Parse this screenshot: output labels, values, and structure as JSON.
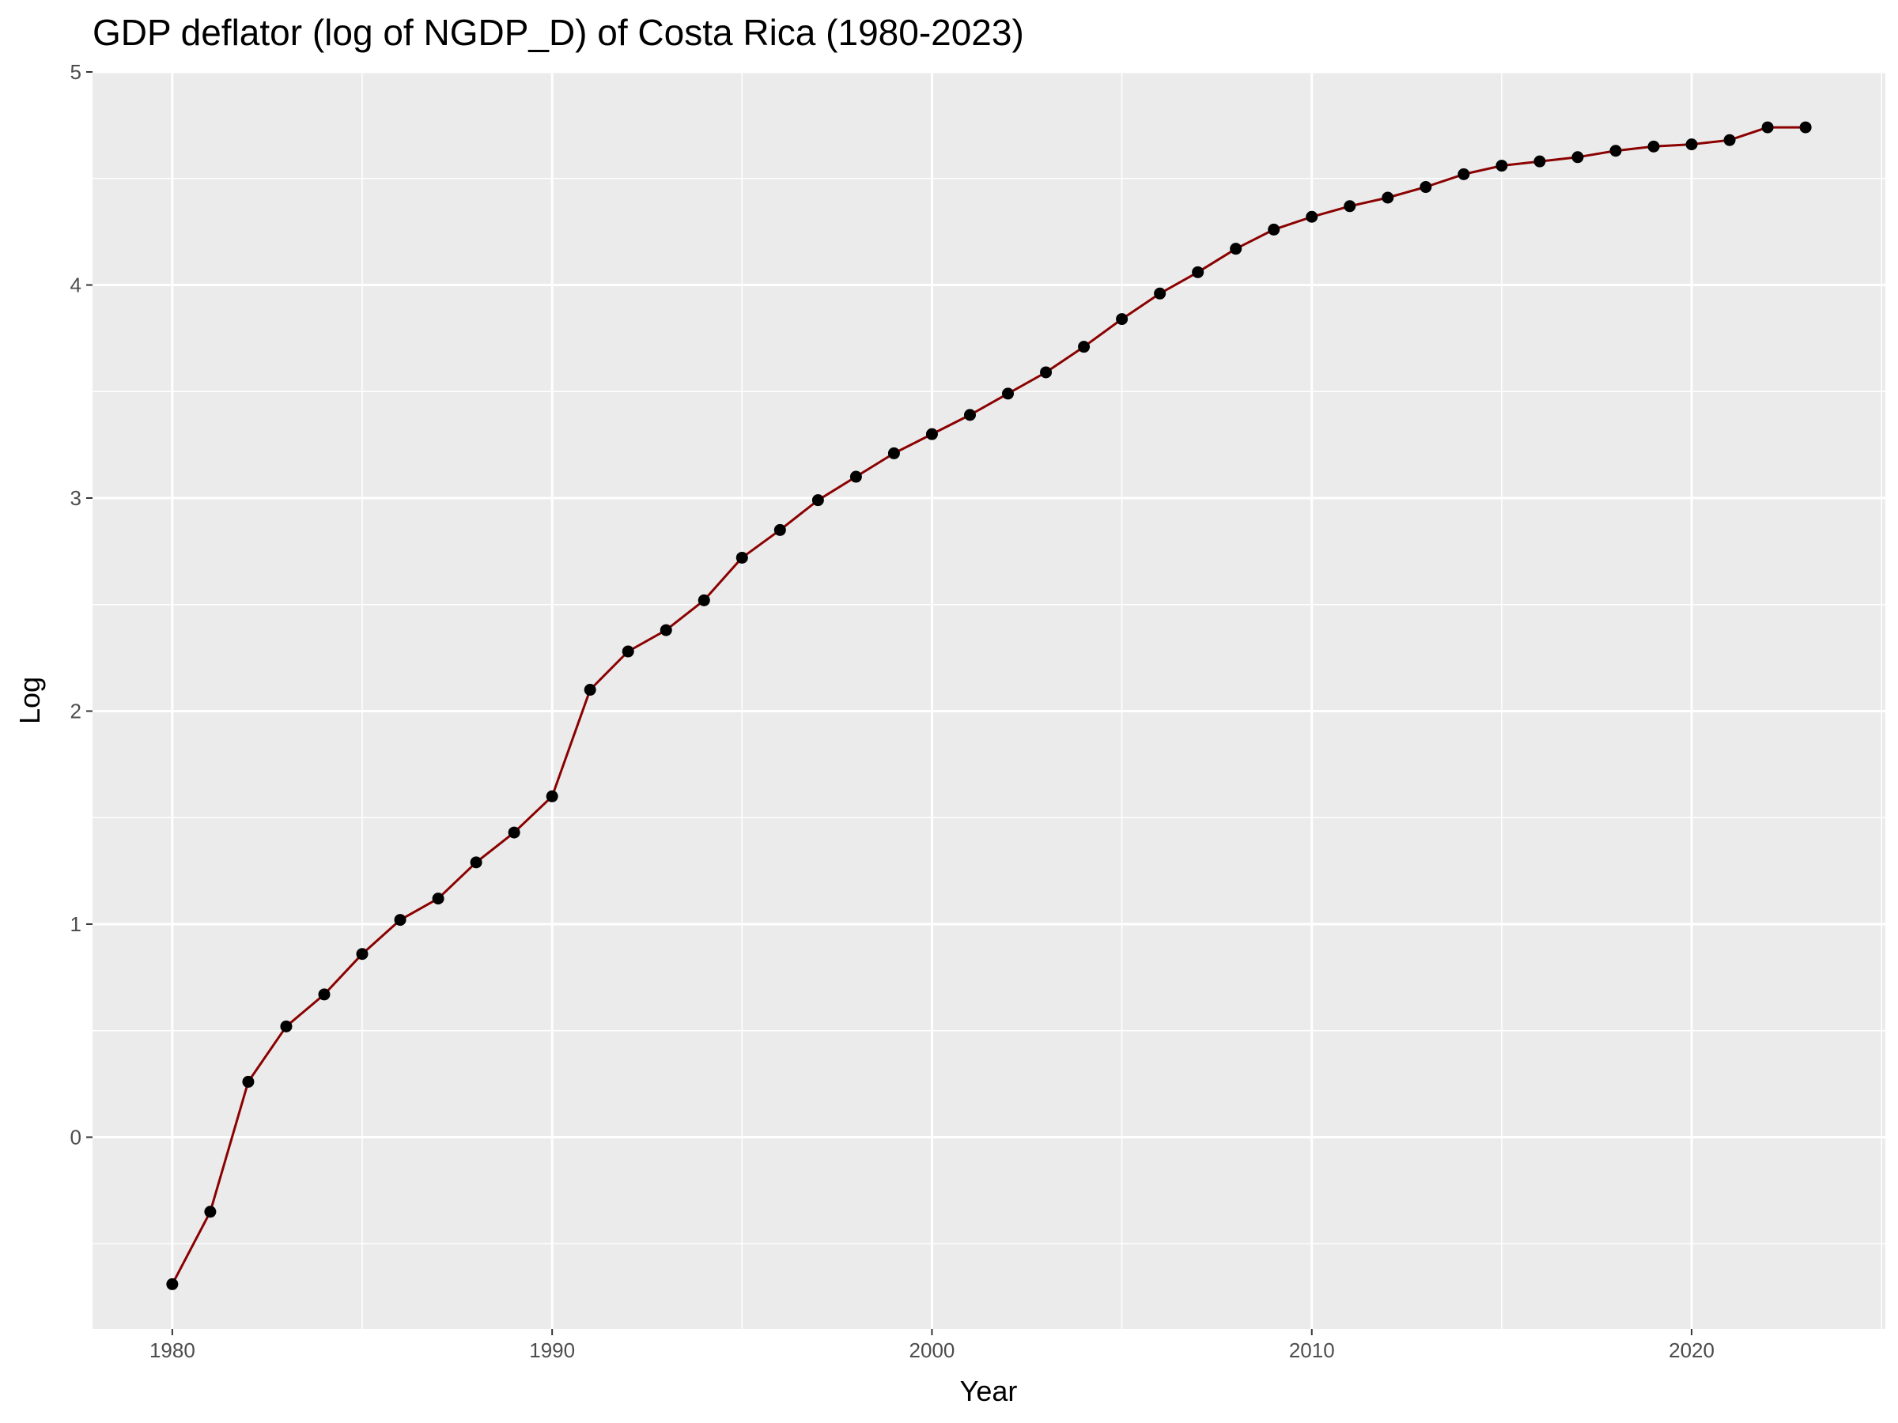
{
  "chart_data": {
    "type": "line",
    "title": "GDP deflator (log of NGDP_D) of Costa Rica (1980-2023)",
    "xlabel": "Year",
    "ylabel": "Log",
    "xlim": [
      1977.9,
      2025.1
    ],
    "ylim": [
      -0.9,
      5.0
    ],
    "x_ticks": [
      1980,
      1990,
      2000,
      2010,
      2020
    ],
    "y_ticks": [
      0,
      1,
      2,
      3,
      4,
      5
    ],
    "grid": true,
    "legend": "none",
    "colors": {
      "panel": "#ebebeb",
      "grid": "#ffffff",
      "line": "#8b0000",
      "point": "#000000"
    },
    "series": [
      {
        "x": [
          1980,
          1981,
          1982,
          1983,
          1984,
          1985,
          1986,
          1987,
          1988,
          1989,
          1990,
          1991,
          1992,
          1993,
          1994,
          1995,
          1996,
          1997,
          1998,
          1999,
          2000,
          2001,
          2002,
          2003,
          2004,
          2005,
          2006,
          2007,
          2008,
          2009,
          2010,
          2011,
          2012,
          2013,
          2014,
          2015,
          2016,
          2017,
          2018,
          2019,
          2020,
          2021,
          2022,
          2023
        ],
        "values": [
          -0.69,
          -0.35,
          0.26,
          0.52,
          0.67,
          0.86,
          1.02,
          1.12,
          1.29,
          1.43,
          1.6,
          2.1,
          2.28,
          2.38,
          2.52,
          2.72,
          2.85,
          2.99,
          3.1,
          3.21,
          3.3,
          3.39,
          3.49,
          3.59,
          3.71,
          3.84,
          3.96,
          4.06,
          4.17,
          4.26,
          4.32,
          4.37,
          4.41,
          4.46,
          4.52,
          4.56,
          4.58,
          4.6,
          4.63,
          4.65,
          4.66,
          4.68,
          4.74,
          4.74
        ]
      }
    ]
  }
}
